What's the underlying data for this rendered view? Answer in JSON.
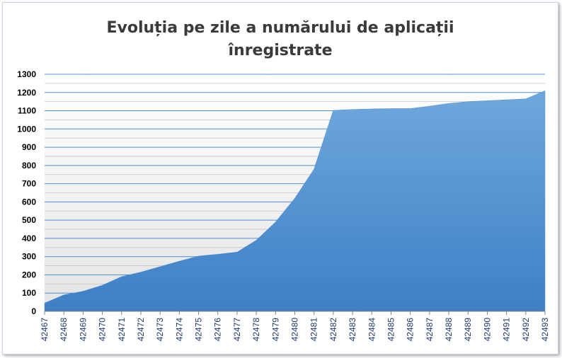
{
  "chart_data": {
    "type": "area",
    "title_lines": [
      "Evoluția pe zile a numărului de aplicații",
      "înregistrate"
    ],
    "xlabel": "",
    "ylabel": "",
    "ylim": [
      0,
      1300
    ],
    "y_ticks": [
      0,
      100,
      200,
      300,
      400,
      500,
      600,
      700,
      800,
      900,
      1000,
      1100,
      1200,
      1300
    ],
    "grid": true,
    "legend": "none",
    "colors": {
      "area_top": "#6fa8dc",
      "area_bottom": "#3d7fc6",
      "grid_major": "#4f8fd6",
      "grid_minor": "#c6c6c6"
    },
    "categories": [
      "42467",
      "42468",
      "42469",
      "42470",
      "42471",
      "42472",
      "42473",
      "42474",
      "42475",
      "42476",
      "42477",
      "42478",
      "42479",
      "42480",
      "42481",
      "42482",
      "42483",
      "42484",
      "42485",
      "42486",
      "42487",
      "42488",
      "42489",
      "42490",
      "42491",
      "42492",
      "42493"
    ],
    "values": [
      45,
      90,
      110,
      143,
      190,
      215,
      245,
      275,
      303,
      313,
      325,
      390,
      490,
      620,
      780,
      1102,
      1107,
      1110,
      1112,
      1112,
      1125,
      1140,
      1150,
      1155,
      1160,
      1165,
      1210
    ]
  }
}
